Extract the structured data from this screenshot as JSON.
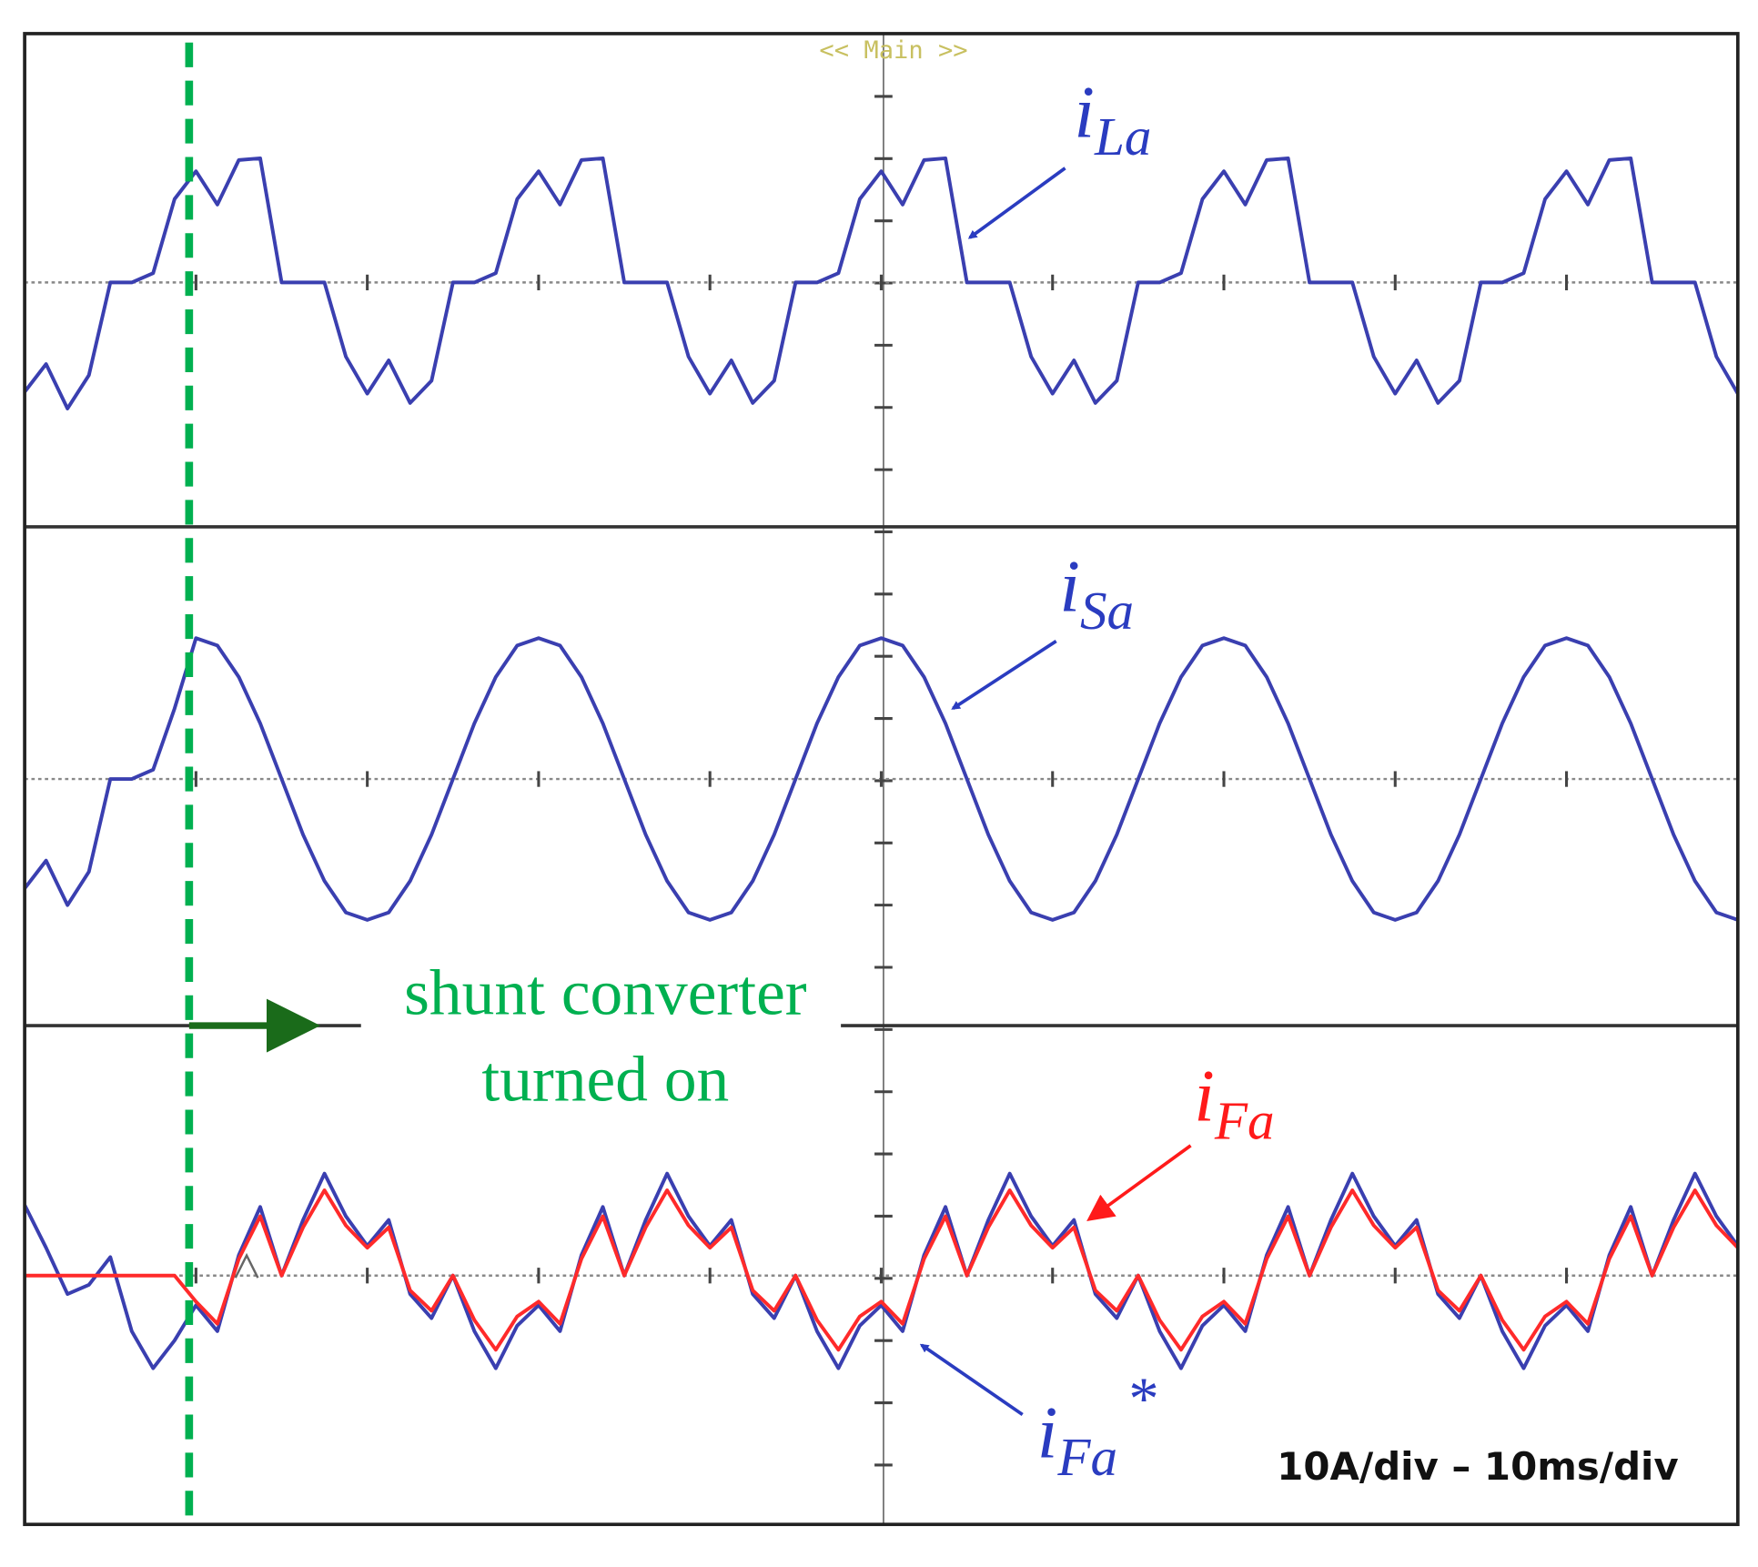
{
  "chart_data": [
    {
      "type": "line",
      "title": "<< Main >>",
      "x": [
        0,
        1.25,
        2.5,
        3.75,
        5,
        6.25,
        7.5,
        8.75,
        10,
        11.25,
        12.5,
        13.75,
        15,
        16.25,
        17.5,
        18.75,
        20,
        21.25,
        22.5,
        23.75,
        25,
        26.25,
        27.5,
        28.75,
        30,
        31.25,
        32.5,
        33.75,
        35,
        36.25,
        37.5,
        38.75,
        40,
        41.25,
        42.5,
        43.75,
        45,
        46.25,
        47.5,
        48.75,
        50,
        51.25,
        52.5,
        53.75,
        55,
        56.25,
        57.5,
        58.75,
        60,
        61.25,
        62.5,
        63.75,
        65,
        66.25,
        67.5,
        68.75,
        70,
        71.25,
        72.5,
        73.75,
        75,
        76.25,
        77.5,
        78.75,
        80,
        81.25,
        82.5,
        83.75,
        85,
        86.25,
        87.5,
        88.75,
        90,
        91.25,
        92.5,
        93.75,
        95,
        96.25,
        97.5,
        98.75,
        100
      ],
      "xlim": [
        0,
        100
      ],
      "ylim": [
        -13.3,
        13.3
      ],
      "series": [
        {
          "label": {
            "base": "i",
            "sub": "La"
          },
          "color": "#3a3fb0",
          "values": [
            -5.9,
            -4.4,
            -6.8,
            -5.0,
            0,
            0,
            0.5,
            4.5,
            6.0,
            4.2,
            6.6,
            6.7,
            0,
            0,
            0,
            -4.0,
            -6.0,
            -4.2,
            -6.5,
            -5.3,
            0,
            0,
            0.5,
            4.5,
            6.0,
            4.2,
            6.6,
            6.7,
            0,
            0,
            0,
            -4.0,
            -6.0,
            -4.2,
            -6.5,
            -5.3,
            0,
            0,
            0.5,
            4.5,
            6.0,
            4.2,
            6.6,
            6.7,
            0,
            0,
            0,
            -4.0,
            -6.0,
            -4.2,
            -6.5,
            -5.3,
            0,
            0,
            0.5,
            4.5,
            6.0,
            4.2,
            6.6,
            6.7,
            0,
            0,
            0,
            -4.0,
            -6.0,
            -4.2,
            -6.5,
            -5.3,
            0,
            0,
            0.5,
            4.5,
            6.0,
            4.2,
            6.6,
            6.7,
            0,
            0,
            0,
            -4.0,
            -6.0
          ]
        }
      ]
    },
    {
      "type": "line",
      "x": [
        0,
        1.25,
        2.5,
        3.75,
        5,
        6.25,
        7.5,
        8.75,
        10,
        11.25,
        12.5,
        13.75,
        15,
        16.25,
        17.5,
        18.75,
        20,
        21.25,
        22.5,
        23.75,
        25,
        26.25,
        27.5,
        28.75,
        30,
        31.25,
        32.5,
        33.75,
        35,
        36.25,
        37.5,
        38.75,
        40,
        41.25,
        42.5,
        43.75,
        45,
        46.25,
        47.5,
        48.75,
        50,
        51.25,
        52.5,
        53.75,
        55,
        56.25,
        57.5,
        58.75,
        60,
        61.25,
        62.5,
        63.75,
        65,
        66.25,
        67.5,
        68.75,
        70,
        71.25,
        72.5,
        73.75,
        75,
        76.25,
        77.5,
        78.75,
        80,
        81.25,
        82.5,
        83.75,
        85,
        86.25,
        87.5,
        88.75,
        90,
        91.25,
        92.5,
        93.75,
        95,
        96.25,
        97.5,
        98.75,
        100
      ],
      "xlim": [
        0,
        100
      ],
      "ylim": [
        -13.3,
        13.3
      ],
      "series": [
        {
          "label": {
            "base": "i",
            "sub": "Sa"
          },
          "color": "#3a3fb0",
          "values": [
            -5.9,
            -4.4,
            -6.8,
            -5.0,
            0,
            0,
            0.5,
            3.8,
            7.6,
            7.2,
            5.5,
            3.0,
            0,
            -3.0,
            -5.5,
            -7.2,
            -7.6,
            -7.2,
            -5.5,
            -3.0,
            0,
            3.0,
            5.5,
            7.2,
            7.6,
            7.2,
            5.5,
            3.0,
            0,
            -3.0,
            -5.5,
            -7.2,
            -7.6,
            -7.2,
            -5.5,
            -3.0,
            0,
            3.0,
            5.5,
            7.2,
            7.6,
            7.2,
            5.5,
            3.0,
            0,
            -3.0,
            -5.5,
            -7.2,
            -7.6,
            -7.2,
            -5.5,
            -3.0,
            0,
            3.0,
            5.5,
            7.2,
            7.6,
            7.2,
            5.5,
            3.0,
            0,
            -3.0,
            -5.5,
            -7.2,
            -7.6,
            -7.2,
            -5.5,
            -3.0,
            0,
            3.0,
            5.5,
            7.2,
            7.6,
            7.2,
            5.5,
            3.0,
            0,
            -3.0,
            -5.5,
            -7.2,
            -7.6
          ]
        }
      ]
    },
    {
      "type": "line",
      "x": [
        0,
        1.25,
        2.5,
        3.75,
        5,
        6.25,
        7.5,
        8.75,
        10,
        11.25,
        12.5,
        13.75,
        15,
        16.25,
        17.5,
        18.75,
        20,
        21.25,
        22.5,
        23.75,
        25,
        26.25,
        27.5,
        28.75,
        30,
        31.25,
        32.5,
        33.75,
        35,
        36.25,
        37.5,
        38.75,
        40,
        41.25,
        42.5,
        43.75,
        45,
        46.25,
        47.5,
        48.75,
        50,
        51.25,
        52.5,
        53.75,
        55,
        56.25,
        57.5,
        58.75,
        60,
        61.25,
        62.5,
        63.75,
        65,
        66.25,
        67.5,
        68.75,
        70,
        71.25,
        72.5,
        73.75,
        75,
        76.25,
        77.5,
        78.75,
        80,
        81.25,
        82.5,
        83.75,
        85,
        86.25,
        87.5,
        88.75,
        90,
        91.25,
        92.5,
        93.75,
        95,
        96.25,
        97.5,
        98.75,
        100
      ],
      "xlim": [
        0,
        100
      ],
      "ylim": [
        -13.3,
        13.3
      ],
      "event_x": 9.6,
      "annotation": [
        "shunt converter",
        "turned on"
      ],
      "scale_note": "10A/div – 10ms/div",
      "series": [
        {
          "label": {
            "base": "i",
            "sub": "Fa",
            "sup": "*"
          },
          "color": "#3a3fb0",
          "values": [
            3.8,
            1.5,
            -1.0,
            -0.5,
            1.0,
            -3.0,
            -5.0,
            -3.5,
            -1.6,
            -3.0,
            1.1,
            3.7,
            0,
            3.0,
            5.5,
            3.2,
            1.6,
            3.0,
            -1.0,
            -2.3,
            0,
            -3.0,
            -5.0,
            -2.7,
            -1.6,
            -3.0,
            1.1,
            3.7,
            0,
            3.0,
            5.5,
            3.2,
            1.6,
            3.0,
            -1.0,
            -2.3,
            0,
            -3.0,
            -5.0,
            -2.7,
            -1.6,
            -3.0,
            1.1,
            3.7,
            0,
            3.0,
            5.5,
            3.2,
            1.6,
            3.0,
            -1.0,
            -2.3,
            0,
            -3.0,
            -5.0,
            -2.7,
            -1.6,
            -3.0,
            1.1,
            3.7,
            0,
            3.0,
            5.5,
            3.2,
            1.6,
            3.0,
            -1.0,
            -2.3,
            0,
            -3.0,
            -5.0,
            -2.7,
            -1.6,
            -3.0,
            1.1,
            3.7,
            0,
            3.0,
            5.5,
            3.2,
            1.6
          ]
        },
        {
          "label": {
            "base": "i",
            "sub": "Fa"
          },
          "color": "#ff2a2a",
          "values": [
            0,
            0,
            0,
            0,
            0,
            0,
            0,
            0,
            -1.4,
            -2.6,
            0.9,
            3.2,
            0,
            2.6,
            4.6,
            2.7,
            1.5,
            2.6,
            -0.8,
            -1.9,
            0,
            -2.4,
            -4.0,
            -2.2,
            -1.4,
            -2.6,
            0.9,
            3.2,
            0,
            2.6,
            4.6,
            2.7,
            1.5,
            2.6,
            -0.8,
            -1.9,
            0,
            -2.4,
            -4.0,
            -2.2,
            -1.4,
            -2.6,
            0.9,
            3.2,
            0,
            2.6,
            4.6,
            2.7,
            1.5,
            2.6,
            -0.8,
            -1.9,
            0,
            -2.4,
            -4.0,
            -2.2,
            -1.4,
            -2.6,
            0.9,
            3.2,
            0,
            2.6,
            4.6,
            2.7,
            1.5,
            2.6,
            -0.8,
            -1.9,
            0,
            -2.4,
            -4.0,
            -2.2,
            -1.4,
            -2.6,
            0.9,
            3.2,
            0,
            2.6,
            4.6,
            2.7,
            1.5
          ]
        }
      ]
    }
  ]
}
